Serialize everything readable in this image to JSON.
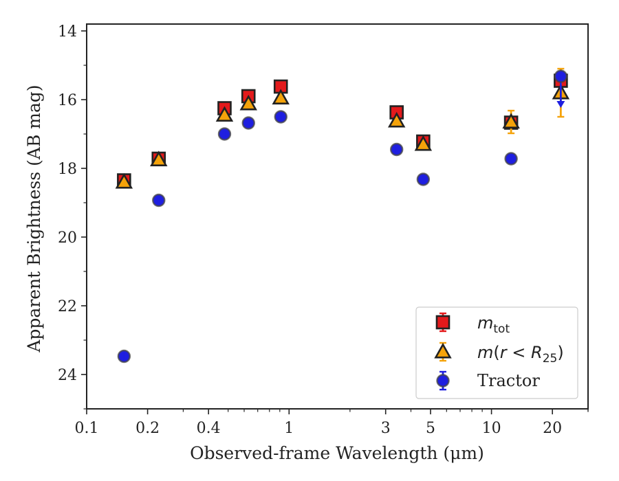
{
  "chart_data": {
    "type": "scatter",
    "xlabel": "Observed-frame Wavelength (μm)",
    "ylabel": "Apparent Brightness (AB mag)",
    "x_scale": "log",
    "xlim": [
      0.1,
      30
    ],
    "ylim": [
      25,
      13.8
    ],
    "y_inverted": true,
    "x_ticks": [
      {
        "value": 0.1,
        "label": "0.1"
      },
      {
        "value": 0.2,
        "label": "0.2"
      },
      {
        "value": 0.4,
        "label": "0.4"
      },
      {
        "value": 1,
        "label": "1"
      },
      {
        "value": 3,
        "label": "3"
      },
      {
        "value": 5,
        "label": "5"
      },
      {
        "value": 10,
        "label": "10"
      },
      {
        "value": 20,
        "label": "20"
      }
    ],
    "y_ticks": [
      {
        "value": 14,
        "label": "14"
      },
      {
        "value": 16,
        "label": "16"
      },
      {
        "value": 18,
        "label": "18"
      },
      {
        "value": 20,
        "label": "20"
      },
      {
        "value": 22,
        "label": "22"
      },
      {
        "value": 24,
        "label": "24"
      }
    ],
    "legend_position": "lower-right",
    "series": [
      {
        "name": "m_tot",
        "marker": "square",
        "color": "#e31a1c",
        "errcolor": "#e31a1c",
        "points": [
          {
            "x": 0.153,
            "y": 18.35
          },
          {
            "x": 0.227,
            "y": 17.72
          },
          {
            "x": 0.48,
            "y": 16.25
          },
          {
            "x": 0.63,
            "y": 15.9
          },
          {
            "x": 0.91,
            "y": 15.62
          },
          {
            "x": 3.4,
            "y": 16.37
          },
          {
            "x": 4.6,
            "y": 17.22
          },
          {
            "x": 12.5,
            "y": 16.67
          },
          {
            "x": 22.0,
            "y": 15.45
          }
        ]
      },
      {
        "name": "m(r<R25)",
        "marker": "triangle",
        "color": "#f5a30a",
        "errcolor": "#f5a30a",
        "points": [
          {
            "x": 0.153,
            "y": 18.4
          },
          {
            "x": 0.227,
            "y": 17.75
          },
          {
            "x": 0.48,
            "y": 16.45
          },
          {
            "x": 0.63,
            "y": 16.12
          },
          {
            "x": 0.91,
            "y": 15.95
          },
          {
            "x": 3.4,
            "y": 16.62
          },
          {
            "x": 4.6,
            "y": 17.3
          },
          {
            "x": 12.5,
            "y": 16.65,
            "yerr": 0.33
          },
          {
            "x": 22.0,
            "y": 15.8,
            "yerr_lo": 0.7,
            "yerr_hi": 0.7
          }
        ]
      },
      {
        "name": "Tractor",
        "marker": "circle",
        "color": "#1f1fe0",
        "errcolor": "#1f1fe0",
        "points": [
          {
            "x": 0.153,
            "y": 23.47
          },
          {
            "x": 0.227,
            "y": 18.93
          },
          {
            "x": 0.48,
            "y": 17.0
          },
          {
            "x": 0.63,
            "y": 16.68
          },
          {
            "x": 0.91,
            "y": 16.5
          },
          {
            "x": 3.4,
            "y": 17.45
          },
          {
            "x": 4.6,
            "y": 18.32
          },
          {
            "x": 12.5,
            "y": 17.72
          },
          {
            "x": 22.0,
            "y": 15.32,
            "arrow_to": 16.2
          }
        ]
      }
    ]
  }
}
